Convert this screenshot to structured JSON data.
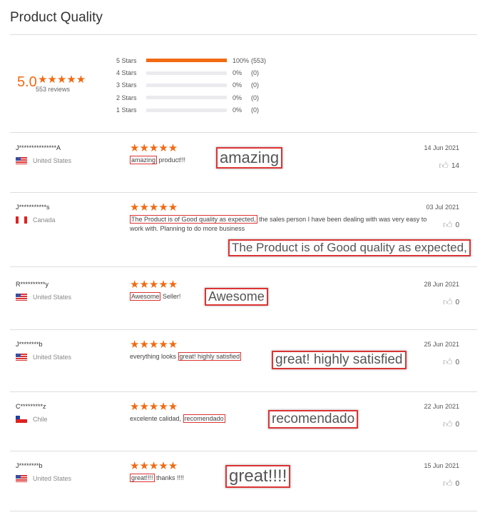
{
  "title": "Product Quality",
  "summary": {
    "rating": "5.0",
    "stars": "★★★★★",
    "reviews": "553 reviews",
    "distribution": [
      {
        "label": "5 Stars",
        "fraction": 1.0,
        "percent": "100%",
        "count": "(553)"
      },
      {
        "label": "4 Stars",
        "fraction": 0,
        "percent": "0%",
        "count": "(0)"
      },
      {
        "label": "3 Stars",
        "fraction": 0,
        "percent": "0%",
        "count": "(0)"
      },
      {
        "label": "2 Stars",
        "fraction": 0,
        "percent": "0%",
        "count": "(0)"
      },
      {
        "label": "1 Stars",
        "fraction": 0,
        "percent": "0%",
        "count": "(0)"
      }
    ]
  },
  "accent": "#f26a12",
  "reviews": [
    {
      "name": "J***************A",
      "country": "United States",
      "flag": "us",
      "stars": "★★★★★",
      "highlight": "amazing",
      "rest": " product!!!",
      "pre": "",
      "callout": "amazing",
      "date": "14 Jun 2021",
      "likes": "14"
    },
    {
      "name": "J***********s",
      "country": "Canada",
      "flag": "ca",
      "stars": "★★★★★",
      "pre": "",
      "highlight": "The Product is of Good quality as expected,",
      "rest": " the sales person I have been dealing with was very easy to work with. Planning to do more business",
      "callout": "The Product is of Good quality as expected,",
      "date": "03 Jul 2021",
      "likes": "0"
    },
    {
      "name": "R**********y",
      "country": "United States",
      "flag": "us",
      "stars": "★★★★★",
      "pre": "",
      "highlight": "Awesome",
      "rest": " Seller!",
      "callout": "Awesome",
      "date": "28 Jun 2021",
      "likes": "0"
    },
    {
      "name": "J********b",
      "country": "United States",
      "flag": "us",
      "stars": "★★★★★",
      "pre": "everything looks ",
      "highlight": "great! highly satisfied",
      "rest": "",
      "callout": "great! highly satisfied",
      "date": "25 Jun 2021",
      "likes": "0"
    },
    {
      "name": "C*********z",
      "country": "Chile",
      "flag": "cl",
      "stars": "★★★★★",
      "pre": "excelente calidad, ",
      "highlight": "recomendado",
      "rest": "",
      "callout": "recomendado",
      "date": "22 Jun 2021",
      "likes": "0"
    },
    {
      "name": "J********b",
      "country": "United States",
      "flag": "us",
      "stars": "★★★★★",
      "pre": "",
      "highlight": "great!!!!",
      "rest": " thanks !!!!",
      "callout": "great!!!!",
      "date": "15 Jun 2021",
      "likes": "0"
    }
  ]
}
